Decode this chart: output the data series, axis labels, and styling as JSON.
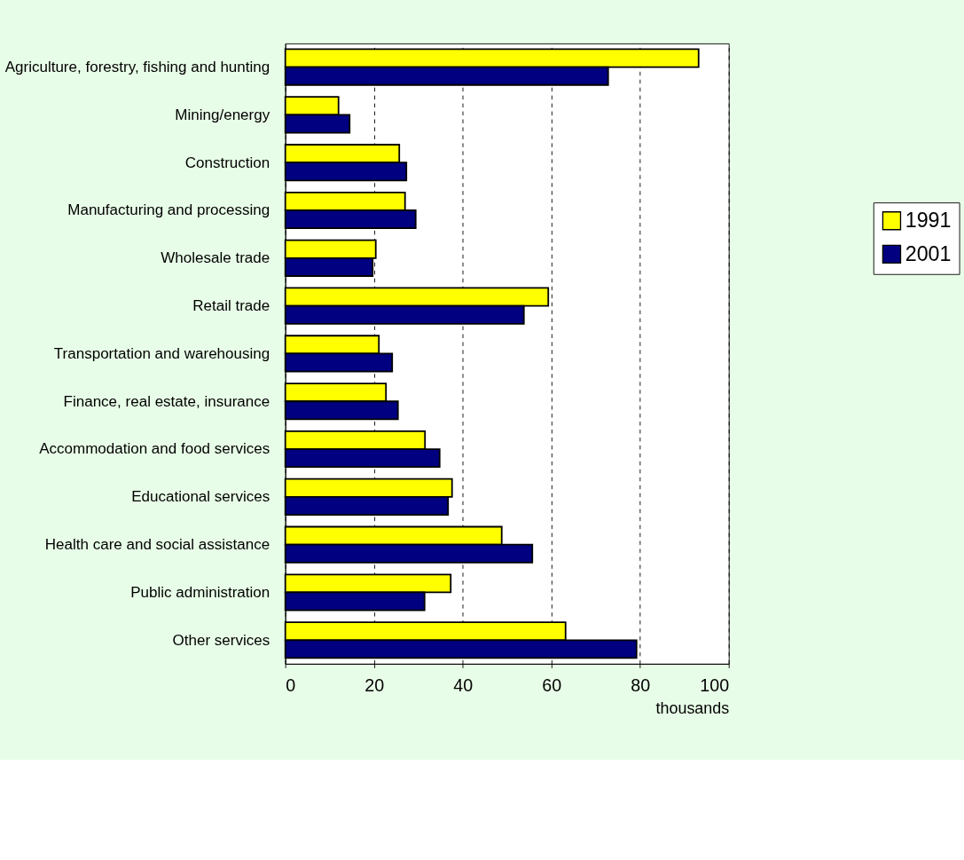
{
  "chart_data": {
    "type": "bar",
    "orientation": "horizontal",
    "xlabel": "thousands",
    "categories": [
      "Agriculture, forestry, fishing and hunting",
      "Mining/energy",
      "Construction",
      "Manufacturing and processing",
      "Wholesale trade",
      "Retail trade",
      "Transportation and warehousing",
      "Finance, real estate, insurance",
      "Accommodation and food services",
      "Educational services",
      "Health care and social assistance",
      "Public administration",
      "Other services"
    ],
    "series": [
      {
        "name": "1991",
        "color": "#ffff00",
        "values": [
          93.2,
          12.0,
          25.7,
          27.0,
          20.4,
          59.3,
          21.1,
          22.7,
          31.5,
          37.6,
          48.8,
          37.3,
          63.2
        ]
      },
      {
        "name": "2001",
        "color": "#000080",
        "values": [
          72.8,
          14.5,
          27.3,
          29.4,
          19.7,
          53.8,
          24.1,
          25.4,
          34.8,
          36.7,
          55.7,
          31.4,
          79.2
        ]
      }
    ],
    "xlim": [
      0,
      100
    ],
    "xticks": [
      0,
      20,
      40,
      60,
      80,
      100
    ],
    "grid": "x",
    "line_style": "dashed",
    "legend": "right"
  }
}
